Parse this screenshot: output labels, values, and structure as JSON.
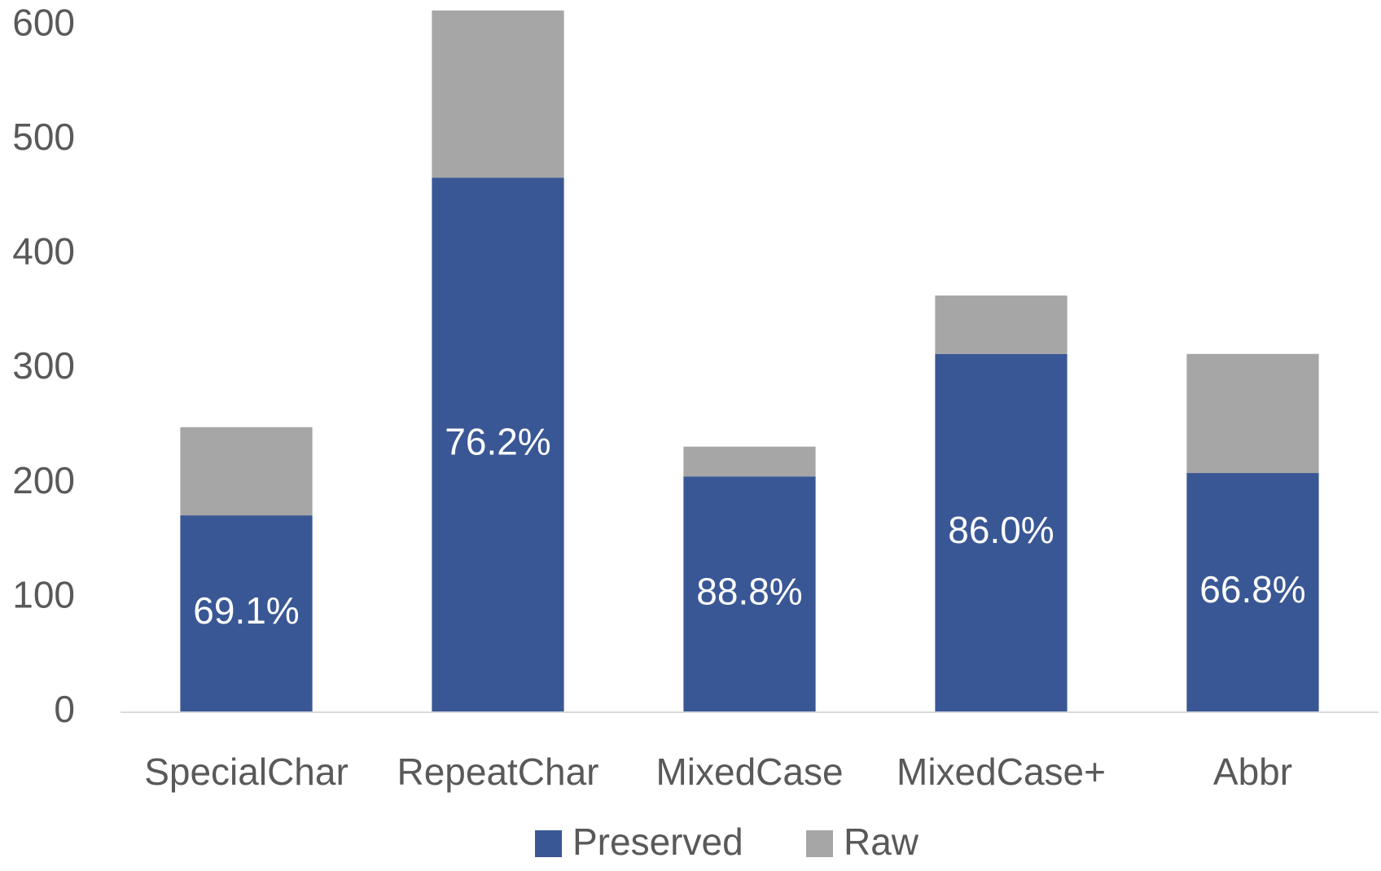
{
  "chart_data": {
    "type": "stacked_bar",
    "categories": [
      "SpecialChar",
      "RepeatChar",
      "MixedCase",
      "MixedCase+",
      "Abbr"
    ],
    "series": [
      {
        "name": "Preserved",
        "color": "#3a5795",
        "values": [
          172,
          467,
          206,
          313,
          209
        ],
        "value_labels": [
          "69.1%",
          "76.2%",
          "88.8%",
          "86.0%",
          "66.8%"
        ]
      },
      {
        "name": "Raw",
        "color": "#a6a6a6",
        "values": [
          77,
          146,
          26,
          51,
          104
        ]
      }
    ],
    "ylim": [
      0,
      620
    ],
    "yticks": [
      0,
      100,
      200,
      300,
      400,
      500,
      600
    ],
    "grid": false,
    "legend": "bottom"
  }
}
